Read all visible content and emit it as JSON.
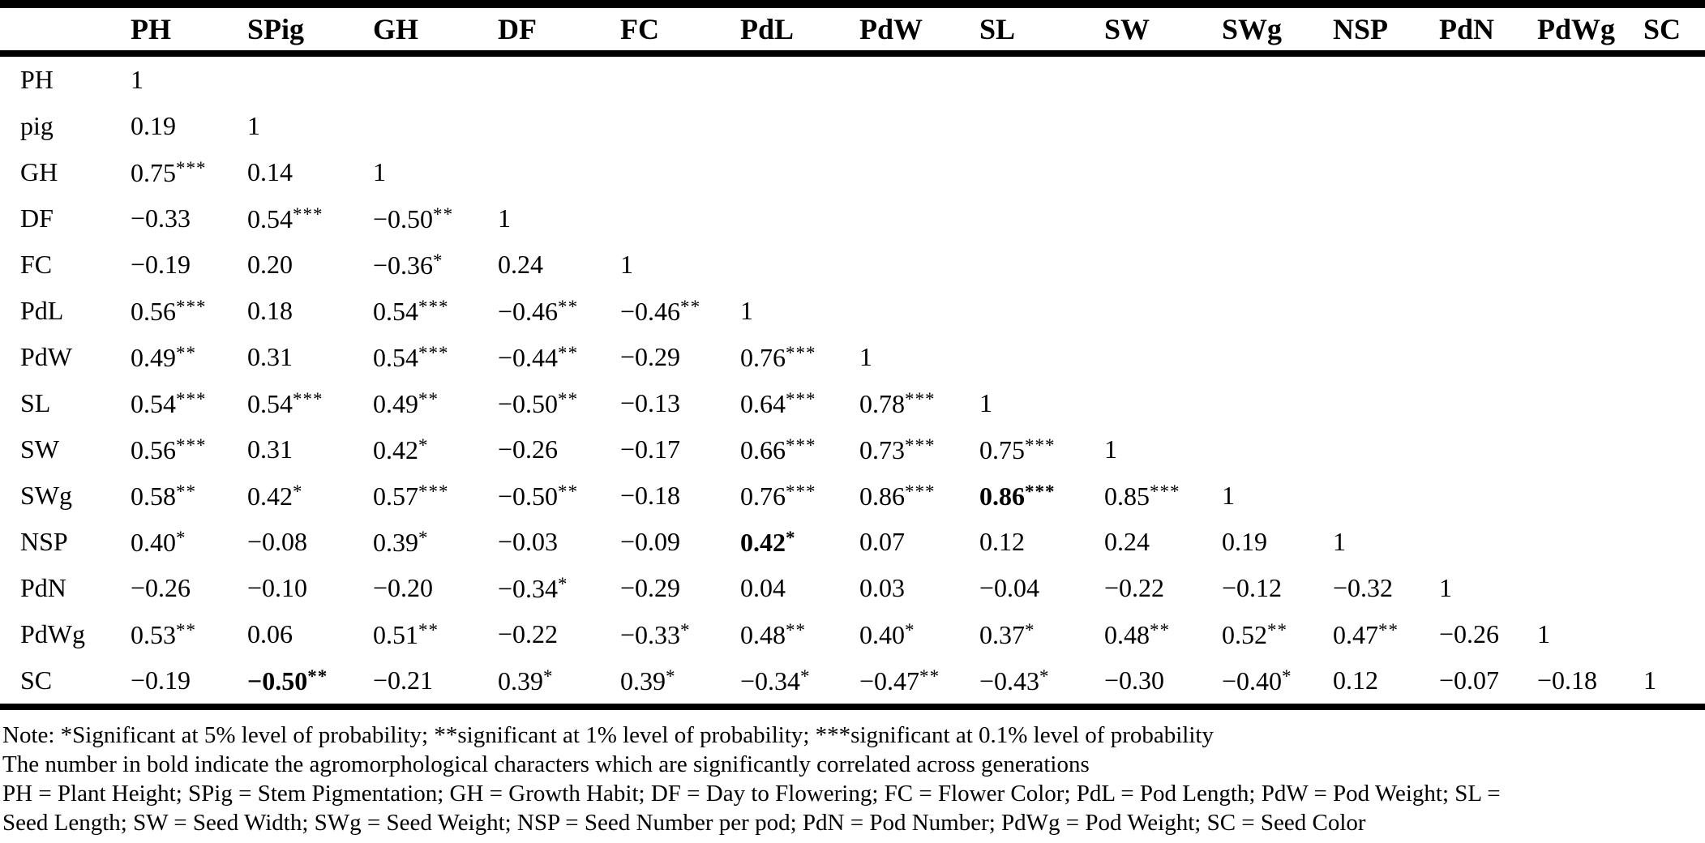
{
  "table": {
    "header": [
      "PH",
      "SPig",
      "GH",
      "DF",
      "FC",
      "PdL",
      "PdW",
      "SL",
      "SW",
      "SWg",
      "NSP",
      "PdN",
      "PdWg",
      "SC"
    ],
    "rows": [
      {
        "label": "PH",
        "cells": [
          "1"
        ]
      },
      {
        "label": "pig",
        "cells": [
          "0.19",
          "1"
        ]
      },
      {
        "label": "GH",
        "cells": [
          "0.75***",
          "0.14",
          "1"
        ]
      },
      {
        "label": "DF",
        "cells": [
          "−0.33",
          "0.54***",
          "−0.50**",
          "1"
        ]
      },
      {
        "label": "FC",
        "cells": [
          "−0.19",
          "0.20",
          "−0.36*",
          "0.24",
          "1"
        ]
      },
      {
        "label": "PdL",
        "cells": [
          "0.56***",
          "0.18",
          "0.54***",
          "−0.46**",
          "−0.46**",
          "1"
        ]
      },
      {
        "label": "PdW",
        "cells": [
          "0.49**",
          "0.31",
          "0.54***",
          "−0.44**",
          "−0.29",
          "0.76***",
          "1"
        ]
      },
      {
        "label": "SL",
        "cells": [
          "0.54***",
          "0.54***",
          "0.49**",
          "−0.50**",
          "−0.13",
          "0.64***",
          "0.78***",
          "1"
        ]
      },
      {
        "label": "SW",
        "cells": [
          "0.56***",
          "0.31",
          "0.42*",
          "−0.26",
          "−0.17",
          "0.66***",
          "0.73***",
          "0.75***",
          "1"
        ]
      },
      {
        "label": "SWg",
        "cells": [
          "0.58**",
          "0.42*",
          "0.57***",
          "−0.50**",
          "−0.18",
          "0.76***",
          "0.86***",
          "0.86***",
          "0.85***",
          "1"
        ]
      },
      {
        "label": "NSP",
        "cells": [
          "0.40*",
          "−0.08",
          "0.39*",
          "−0.03",
          "−0.09",
          "0.42*",
          "0.07",
          "0.12",
          "0.24",
          "0.19",
          "1"
        ]
      },
      {
        "label": "PdN",
        "cells": [
          "−0.26",
          "−0.10",
          "−0.20",
          "−0.34*",
          "−0.29",
          "0.04",
          "0.03",
          "−0.04",
          "−0.22",
          "−0.12",
          "−0.32",
          "1"
        ]
      },
      {
        "label": "PdWg",
        "cells": [
          "0.53**",
          "0.06",
          "0.51**",
          "−0.22",
          "−0.33*",
          "0.48**",
          "0.40*",
          "0.37*",
          "0.48**",
          "0.52**",
          "0.47**",
          "−0.26",
          "1"
        ]
      },
      {
        "label": "SC",
        "cells": [
          "−0.19",
          "−0.50**",
          "−0.21",
          "0.39*",
          "0.39*",
          "−0.34*",
          "−0.47**",
          "−0.43*",
          "−0.30",
          "−0.40*",
          "0.12",
          "−0.07",
          "−0.18",
          "1"
        ]
      }
    ],
    "bold_cells": [
      {
        "row_label": "SWg",
        "col": "SL"
      },
      {
        "row_label": "NSP",
        "col": "PdL"
      },
      {
        "row_label": "SC",
        "col": "SPig"
      }
    ]
  },
  "notes": {
    "line1": "Note: *Significant at 5% level of probability; **significant at 1% level of probability; ***significant at 0.1% level of probability",
    "line2": "The number in bold indicate the agromorphological characters which are significantly correlated across generations",
    "line3": "PH = Plant Height; SPig = Stem Pigmentation; GH = Growth Habit; DF = Day to Flowering; FC = Flower Color; PdL = Pod Length; PdW = Pod Weight; SL =",
    "line4": "Seed Length; SW = Seed Width; SWg = Seed Weight; NSP = Seed Number per pod; PdN = Pod Number; PdWg = Pod Weight; SC = Seed Color"
  },
  "colors": {
    "text": "#000000",
    "background": "#ffffff",
    "rule": "#000000"
  }
}
